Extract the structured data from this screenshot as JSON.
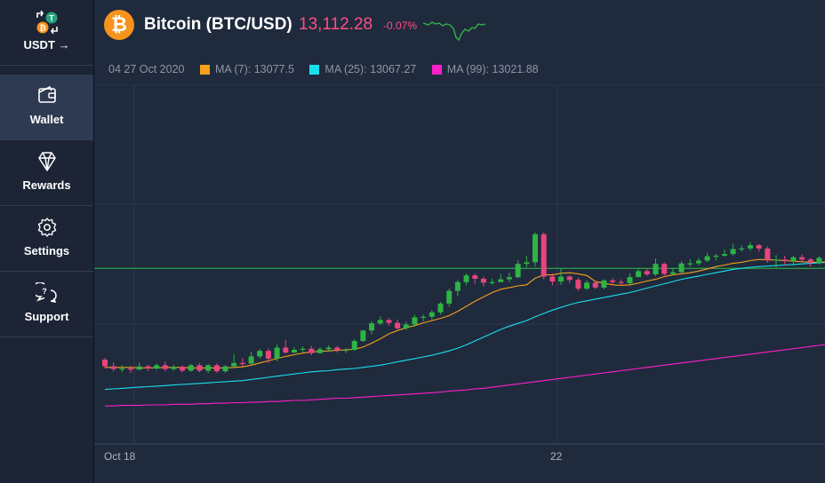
{
  "sidebar": {
    "items": [
      {
        "label": "USDT →",
        "icon": "swap-token-icon",
        "active": false
      },
      {
        "label": "Wallet",
        "icon": "wallet-icon",
        "active": true
      },
      {
        "label": "Rewards",
        "icon": "diamond-icon",
        "active": false
      },
      {
        "label": "Settings",
        "icon": "gear-icon",
        "active": false
      },
      {
        "label": "Support",
        "icon": "chat-question-icon",
        "active": false
      }
    ]
  },
  "header": {
    "logo_symbol": "₿",
    "title": "Bitcoin (BTC/USD)",
    "price": "13,112.28",
    "change": "-0.07%"
  },
  "legend": {
    "time": "04 27 Oct 2020",
    "ma7": {
      "label": "MA (7): 13077.5",
      "color": "#f7a01a"
    },
    "ma25": {
      "label": "MA (25): 13067.27",
      "color": "#18e0ee"
    },
    "ma99": {
      "label": "MA (99): 13021.88",
      "color": "#ff1fc8"
    }
  },
  "colors": {
    "up": "#2fb344",
    "down": "#e8457e",
    "grid": "#2c3850",
    "hline": "#2fbf45"
  },
  "chart_data": {
    "type": "candlestick",
    "x_labels": [
      "Oct 18",
      "22"
    ],
    "candles": [
      [
        24,
        12,
        27,
        8
      ],
      [
        12,
        7,
        19,
        3
      ],
      [
        7,
        8,
        14,
        1
      ],
      [
        8,
        6,
        13,
        0
      ],
      [
        6,
        12,
        19,
        5
      ],
      [
        12,
        8,
        15,
        3
      ],
      [
        8,
        14,
        17,
        5
      ],
      [
        14,
        7,
        21,
        3
      ],
      [
        7,
        11,
        15,
        4
      ],
      [
        11,
        4,
        14,
        1
      ],
      [
        4,
        14,
        16,
        2
      ],
      [
        14,
        4,
        18,
        1
      ],
      [
        4,
        14,
        16,
        0
      ],
      [
        14,
        3,
        17,
        0
      ],
      [
        3,
        12,
        14,
        0
      ],
      [
        12,
        18,
        34,
        8
      ],
      [
        18,
        17,
        27,
        12
      ],
      [
        17,
        30,
        38,
        14
      ],
      [
        30,
        40,
        44,
        26
      ],
      [
        40,
        26,
        44,
        18
      ],
      [
        26,
        46,
        52,
        21
      ],
      [
        46,
        37,
        60,
        35
      ],
      [
        37,
        42,
        47,
        36
      ],
      [
        42,
        44,
        48,
        38
      ],
      [
        44,
        36,
        49,
        32
      ],
      [
        36,
        43,
        47,
        35
      ],
      [
        43,
        46,
        50,
        38
      ],
      [
        46,
        41,
        49,
        37
      ],
      [
        41,
        42,
        45,
        36
      ],
      [
        42,
        58,
        61,
        40
      ],
      [
        58,
        77,
        78,
        56
      ],
      [
        77,
        90,
        94,
        70
      ],
      [
        90,
        96,
        103,
        87
      ],
      [
        96,
        91,
        100,
        86
      ],
      [
        91,
        81,
        97,
        78
      ],
      [
        81,
        88,
        93,
        78
      ],
      [
        88,
        101,
        105,
        84
      ],
      [
        101,
        102,
        106,
        94
      ],
      [
        102,
        110,
        114,
        97
      ],
      [
        110,
        126,
        129,
        106
      ],
      [
        126,
        149,
        153,
        120
      ],
      [
        149,
        165,
        169,
        140
      ],
      [
        165,
        177,
        181,
        159
      ],
      [
        177,
        171,
        181,
        162
      ],
      [
        171,
        164,
        175,
        157
      ],
      [
        164,
        165,
        171,
        160
      ],
      [
        165,
        170,
        180,
        166
      ],
      [
        170,
        174,
        182,
        165
      ],
      [
        174,
        198,
        205,
        172
      ],
      [
        198,
        201,
        213,
        192
      ],
      [
        201,
        252,
        255,
        193
      ],
      [
        252,
        175,
        255,
        170
      ],
      [
        175,
        166,
        181,
        159
      ],
      [
        166,
        175,
        189,
        160
      ],
      [
        175,
        169,
        178,
        163
      ],
      [
        169,
        153,
        173,
        149
      ],
      [
        153,
        164,
        168,
        150
      ],
      [
        164,
        155,
        168,
        152
      ],
      [
        155,
        168,
        170,
        152
      ],
      [
        168,
        165,
        172,
        160
      ],
      [
        165,
        163,
        170,
        158
      ],
      [
        163,
        174,
        181,
        158
      ],
      [
        174,
        185,
        191,
        175
      ],
      [
        185,
        179,
        189,
        176
      ],
      [
        179,
        198,
        208,
        176
      ],
      [
        198,
        180,
        201,
        174
      ],
      [
        180,
        183,
        191,
        178
      ],
      [
        183,
        199,
        203,
        180
      ],
      [
        199,
        199,
        207,
        193
      ],
      [
        199,
        204,
        209,
        195
      ],
      [
        204,
        212,
        218,
        201
      ],
      [
        212,
        213,
        216,
        204
      ],
      [
        213,
        216,
        224,
        211
      ],
      [
        216,
        225,
        235,
        213
      ],
      [
        225,
        226,
        232,
        220
      ],
      [
        226,
        232,
        238,
        222
      ],
      [
        232,
        226,
        234,
        220
      ],
      [
        226,
        204,
        230,
        200
      ],
      [
        204,
        206,
        214,
        191
      ],
      [
        206,
        203,
        213,
        196
      ],
      [
        203,
        210,
        213,
        195
      ],
      [
        210,
        206,
        215,
        201
      ],
      [
        206,
        200,
        209,
        193
      ],
      [
        200,
        209,
        212,
        197
      ],
      [
        209,
        204,
        219,
        193
      ]
    ],
    "ma7": [
      10,
      10,
      10,
      10,
      9,
      9,
      9,
      10,
      10,
      10,
      9,
      9,
      9,
      9,
      9,
      10,
      11,
      14,
      18,
      22,
      26,
      30,
      33,
      36,
      38,
      39,
      40,
      41,
      42,
      43,
      47,
      54,
      62,
      71,
      77,
      82,
      86,
      91,
      95,
      99,
      104,
      112,
      121,
      130,
      138,
      146,
      152,
      155,
      158,
      160,
      172,
      178,
      178,
      181,
      182,
      180,
      177,
      166,
      163,
      160,
      159,
      160,
      163,
      167,
      170,
      175,
      178,
      180,
      182,
      185,
      189,
      193,
      196,
      199,
      201,
      204,
      206,
      206,
      205,
      204,
      203,
      202,
      201,
      201,
      202
    ],
    "ma25": [
      -30,
      -29,
      -28,
      -27,
      -26,
      -25,
      -24,
      -23,
      -22,
      -21,
      -20,
      -19,
      -18,
      -17,
      -16,
      -15,
      -14,
      -12,
      -10,
      -8,
      -6,
      -4,
      -2,
      0,
      2,
      3,
      4,
      6,
      7,
      8,
      10,
      12,
      14,
      17,
      20,
      23,
      26,
      29,
      32,
      36,
      40,
      45,
      51,
      58,
      65,
      72,
      79,
      85,
      90,
      95,
      102,
      108,
      114,
      119,
      124,
      128,
      131,
      134,
      137,
      140,
      143,
      146,
      150,
      154,
      158,
      162,
      166,
      170,
      173,
      176,
      179,
      182,
      185,
      188,
      190,
      192,
      193,
      194,
      195,
      196,
      197,
      198,
      199,
      200,
      201
    ],
    "ma99": [
      -60,
      -60,
      -59,
      -59,
      -59,
      -58,
      -58,
      -58,
      -57,
      -57,
      -57,
      -56,
      -56,
      -55,
      -55,
      -54,
      -54,
      -53,
      -53,
      -52,
      -52,
      -51,
      -50,
      -50,
      -49,
      -48,
      -47,
      -46,
      -46,
      -45,
      -44,
      -43,
      -42,
      -41,
      -40,
      -39,
      -38,
      -37,
      -36,
      -35,
      -33,
      -32,
      -31,
      -29,
      -28,
      -26,
      -24,
      -22,
      -20,
      -18,
      -16,
      -14,
      -12,
      -10,
      -8,
      -6,
      -4,
      -2,
      0,
      2,
      4,
      6,
      8,
      10,
      12,
      14,
      16,
      18,
      20,
      22,
      24,
      26,
      28,
      30,
      32,
      34,
      36,
      38,
      40,
      42,
      44,
      46,
      48,
      50,
      52
    ],
    "hline": 190
  }
}
